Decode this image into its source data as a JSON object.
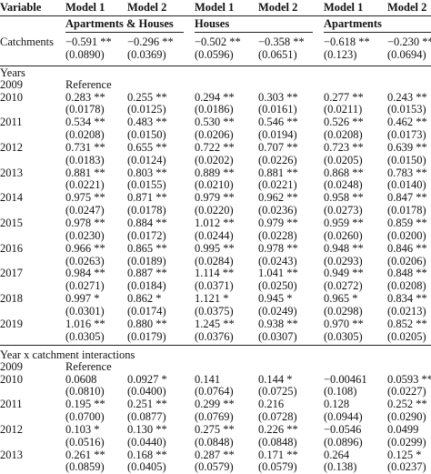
{
  "header": {
    "columns": [
      "Variable",
      "Model 1",
      "Model 2",
      "Model 1",
      "Model 2",
      "Model 1",
      "Model 2"
    ]
  },
  "groups": [
    "Apartments & Houses",
    "Houses",
    "Apartments"
  ],
  "catchments": {
    "label": "Catchments",
    "estimates": [
      "−0.591 **",
      "−0.296 **",
      "−0.502 **",
      "−0.358 **",
      "−0.618 **",
      "−0.230 **"
    ],
    "errors": [
      "(0.0890)",
      "(0.0369)",
      "(0.0596)",
      "(0.0651)",
      "(0.123)",
      "(0.0694)"
    ]
  },
  "years": {
    "title": "Years",
    "reference": {
      "label": "2009",
      "text": "Reference"
    },
    "rows": [
      {
        "label": "2010",
        "estimates": [
          "0.283 **",
          "0.255 **",
          "0.294 **",
          "0.303 **",
          "0.277 **",
          "0.243 **"
        ],
        "errors": [
          "(0.0178)",
          "(0.0125)",
          "(0.0186)",
          "(0.0161)",
          "(0.0211)",
          "(0.0153)"
        ]
      },
      {
        "label": "2011",
        "estimates": [
          "0.534 **",
          "0.483 **",
          "0.530 **",
          "0.546 **",
          "0.526 **",
          "0.462 **"
        ],
        "errors": [
          "(0.0208)",
          "(0.0150)",
          "(0.0206)",
          "(0.0194)",
          "(0.0208)",
          "(0.0173)"
        ]
      },
      {
        "label": "2012",
        "estimates": [
          "0.731 **",
          "0.655 **",
          "0.722 **",
          "0.707 **",
          "0.723 **",
          "0.639 **"
        ],
        "errors": [
          "(0.0183)",
          "(0.0124)",
          "(0.0202)",
          "(0.0226)",
          "(0.0205)",
          "(0.0150)"
        ]
      },
      {
        "label": "2013",
        "estimates": [
          "0.881 **",
          "0.803 **",
          "0.889 **",
          "0.881 **",
          "0.868 **",
          "0.783 **"
        ],
        "errors": [
          "(0.0221)",
          "(0.0155)",
          "(0.0210)",
          "(0.0221)",
          "(0.0248)",
          "(0.0140)"
        ]
      },
      {
        "label": "2014",
        "estimates": [
          "0.975 **",
          "0.871 **",
          "0.979 **",
          "0.962 **",
          "0.958 **",
          "0.847 **"
        ],
        "errors": [
          "(0.0247)",
          "(0.0178)",
          "(0.0220)",
          "(0.0236)",
          "(0.0273)",
          "(0.0178)"
        ]
      },
      {
        "label": "2015",
        "estimates": [
          "0.978 **",
          "0.884 **",
          "1.012 **",
          "0.979 **",
          "0.959 **",
          "0.859 **"
        ],
        "errors": [
          "(0.0230)",
          "(0.0172)",
          "(0.0244)",
          "(0.0228)",
          "(0.0260)",
          "(0.0200)"
        ]
      },
      {
        "label": "2016",
        "estimates": [
          "0.966 **",
          "0.865 **",
          "0.995 **",
          "0.978 **",
          "0.948 **",
          "0.846 **"
        ],
        "errors": [
          "(0.0263)",
          "(0.0189)",
          "(0.0284)",
          "(0.0243)",
          "(0.0293)",
          "(0.0206)"
        ]
      },
      {
        "label": "2017",
        "estimates": [
          "0.984 **",
          "0.887 **",
          "1.114 **",
          "1.041 **",
          "0.949 **",
          "0.848 **"
        ],
        "errors": [
          "(0.0271)",
          "(0.0184)",
          "(0.0371)",
          "(0.0250)",
          "(0.0272)",
          "(0.0208)"
        ]
      },
      {
        "label": "2018",
        "estimates": [
          "0.997 *",
          "0.862 *",
          "1.121 *",
          "0.945 *",
          "0.965 *",
          "0.834 **"
        ],
        "errors": [
          "(0.0301)",
          "(0.0174)",
          "(0.0375)",
          "(0.0249)",
          "(0.0298)",
          "(0.0213)"
        ]
      },
      {
        "label": "2019",
        "estimates": [
          "1.016 **",
          "0.880 **",
          "1.245 **",
          "0.938 **",
          "0.970 **",
          "0.852 **"
        ],
        "errors": [
          "(0.0305)",
          "(0.0179)",
          "(0.0376)",
          "(0.0307)",
          "(0.0305)",
          "(0.0205)"
        ]
      }
    ]
  },
  "interactions": {
    "title": "Year x catchment interactions",
    "reference": {
      "label": "2009",
      "text": "Reference"
    },
    "rows": [
      {
        "label": "2010",
        "estimates": [
          "0.0608",
          "0.0927 *",
          "0.141",
          "0.144 *",
          "−0.00461",
          "0.0593 **"
        ],
        "errors": [
          "(0.0810)",
          "(0.0400)",
          "(0.0764)",
          "(0.0725)",
          "(0.108)",
          "(0.0227)"
        ]
      },
      {
        "label": "2011",
        "estimates": [
          "0.195 **",
          "0.251 **",
          "0.299 **",
          "0.216",
          "0.128",
          "0.252 **"
        ],
        "errors": [
          "(0.0700)",
          "(0.0877)",
          "(0.0769)",
          "(0.0728)",
          "(0.0944)",
          "(0.0290)"
        ]
      },
      {
        "label": "2012",
        "estimates": [
          "0.103 *",
          "0.130 **",
          "0.275 **",
          "0.226 **",
          "−0.0546",
          "0.0499"
        ],
        "errors": [
          "(0.0516)",
          "(0.0440)",
          "(0.0848)",
          "(0.0848)",
          "(0.0896)",
          "(0.0299)"
        ]
      },
      {
        "label": "2013",
        "estimates": [
          "0.261 **",
          "0.168 **",
          "0.287 **",
          "0.171 **",
          "0.264",
          "0.125 *"
        ],
        "errors": [
          "(0.0859)",
          "(0.0405)",
          "(0.0579)",
          "(0.0579)",
          "(0.138)",
          "(0.0237)"
        ]
      }
    ]
  }
}
